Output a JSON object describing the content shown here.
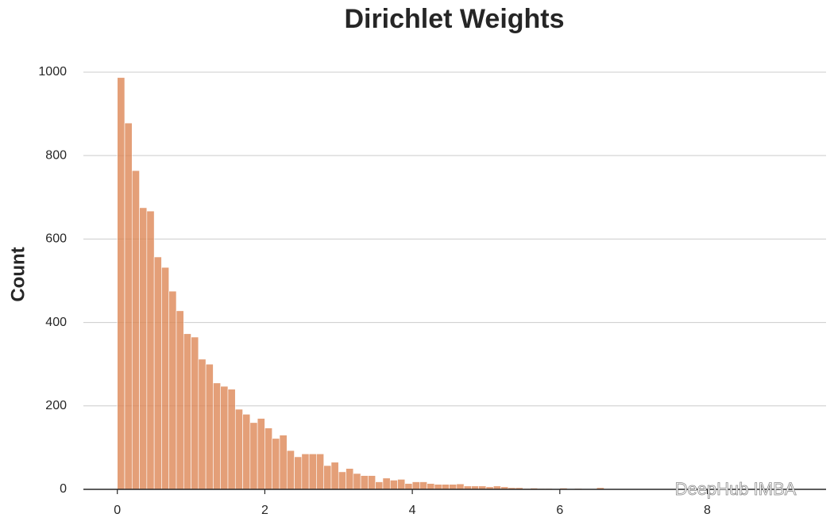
{
  "chart_data": {
    "type": "histogram",
    "title": "Dirichlet Weights",
    "y_label": "Count",
    "watermark": "DeepHub IMBA",
    "color": "#dd8452",
    "grid": true,
    "bins": [
      0.0,
      0.1,
      0.2,
      0.3,
      0.4,
      0.5,
      0.6,
      0.7,
      0.8,
      0.9,
      1.0,
      1.1,
      1.2,
      1.3,
      1.4,
      1.5,
      1.6,
      1.7,
      1.8,
      1.9,
      2.0,
      2.1,
      2.2,
      2.3,
      2.4,
      2.5,
      2.6,
      2.7,
      2.8,
      2.9,
      3.0,
      3.1,
      3.2,
      3.3,
      3.4,
      3.5,
      3.6,
      3.7,
      3.8,
      3.9,
      4.0,
      4.1,
      4.2,
      4.3,
      4.4,
      4.5,
      4.6,
      4.7,
      4.8,
      4.9,
      5.0,
      5.1,
      5.2,
      5.3,
      5.4,
      5.5,
      5.6,
      5.7,
      5.8,
      5.9,
      6.0,
      6.1,
      6.2,
      6.3,
      6.4,
      6.5,
      6.6,
      6.7,
      6.8,
      6.9,
      7.0,
      7.1,
      7.2,
      7.3,
      7.4,
      7.5,
      7.6,
      7.7,
      7.8,
      7.9,
      8.0,
      8.1,
      8.2,
      8.3,
      8.4,
      8.5,
      8.6,
      8.7,
      8.8,
      8.9,
      9.0,
      9.1,
      9.2
    ],
    "values": [
      987,
      878,
      764,
      675,
      667,
      557,
      532,
      475,
      428,
      373,
      365,
      312,
      300,
      255,
      247,
      240,
      192,
      180,
      160,
      170,
      147,
      122,
      130,
      93,
      78,
      85,
      85,
      85,
      57,
      65,
      42,
      50,
      38,
      33,
      33,
      18,
      27,
      22,
      24,
      14,
      18,
      18,
      14,
      12,
      12,
      12,
      13,
      8,
      8,
      8,
      6,
      8,
      6,
      4,
      4,
      2,
      3,
      2,
      2,
      1,
      3,
      1,
      2,
      1,
      1,
      4,
      1,
      1,
      0,
      1,
      0,
      1,
      1,
      1,
      0,
      1,
      0,
      0,
      1,
      0,
      1,
      0,
      0,
      0,
      1,
      0,
      0,
      0,
      0,
      0,
      0,
      1
    ],
    "xlim": [
      -0.46,
      9.61
    ],
    "ylim": [
      0,
      1036
    ],
    "xticks": [
      0,
      2,
      4,
      6,
      8
    ],
    "yticks": [
      0,
      200,
      400,
      600,
      800,
      1000
    ]
  }
}
